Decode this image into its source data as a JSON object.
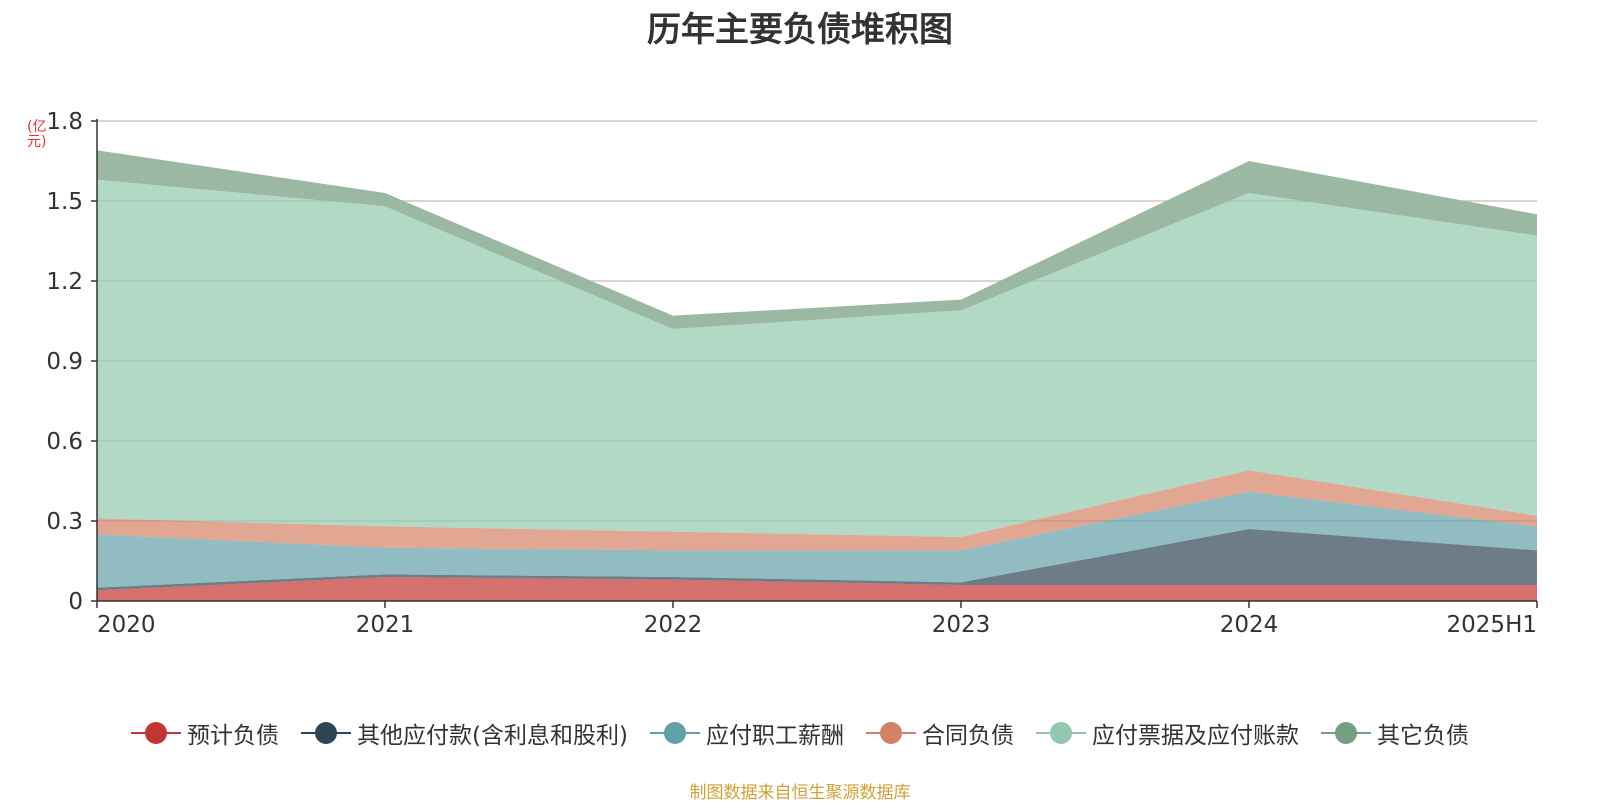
{
  "chart_data": {
    "type": "area",
    "stacked": true,
    "title": "历年主要负债堆积图",
    "unit_label": "(亿元)",
    "categories": [
      "2020",
      "2021",
      "2022",
      "2023",
      "2024",
      "2025H1"
    ],
    "y_ticks": [
      "0",
      "0.3",
      "0.6",
      "0.9",
      "1.2",
      "1.5",
      "1.8"
    ],
    "ylim": [
      0,
      1.8
    ],
    "grid": true,
    "legend_position": "bottom",
    "series": [
      {
        "name": "预计负债",
        "color": "#c23531",
        "values": [
          0.04,
          0.09,
          0.08,
          0.06,
          0.06,
          0.06
        ]
      },
      {
        "name": "其他应付款(含利息和股利)",
        "color": "#2f4554",
        "values": [
          0.01,
          0.01,
          0.01,
          0.01,
          0.21,
          0.13
        ]
      },
      {
        "name": "应付职工薪酬",
        "color": "#61a0a8",
        "values": [
          0.2,
          0.1,
          0.1,
          0.12,
          0.14,
          0.09
        ]
      },
      {
        "name": "合同负债",
        "color": "#d48265",
        "values": [
          0.06,
          0.08,
          0.07,
          0.05,
          0.08,
          0.04
        ]
      },
      {
        "name": "应付票据及应付账款",
        "color": "#91c7ae",
        "values": [
          1.27,
          1.2,
          0.76,
          0.85,
          1.04,
          1.05
        ]
      },
      {
        "name": "其它负债",
        "color": "#749f83",
        "values": [
          0.11,
          0.05,
          0.05,
          0.04,
          0.12,
          0.08
        ]
      }
    ],
    "fill_color": "rgba(145,199,174,0.7)",
    "top_band_color": "#9bb8a3",
    "source_text": "制图数据来自恒生聚源数据库"
  }
}
